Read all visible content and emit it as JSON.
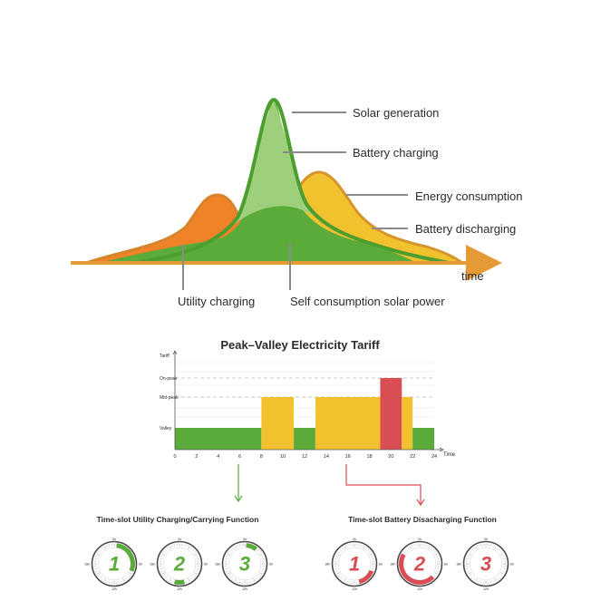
{
  "energy": {
    "labels": {
      "solar_generation": "Solar generation",
      "battery_charging": "Battery charging",
      "energy_consumption": "Energy consumption",
      "battery_discharging": "Battery discharging",
      "time": "time",
      "utility_charging": "Utility charging",
      "self_consumption": "Self consumption solar power"
    },
    "colors": {
      "orange": "#f08228",
      "orange_stroke": "#d6842c",
      "green_dark": "#5aab3a",
      "green_light": "#9ed07c",
      "green_stroke": "#4c9e2f",
      "yellow": "#f2c12e",
      "axis": "#e69a35",
      "leader": "#8a8a8a"
    }
  },
  "tariff": {
    "title": "Peak–Valley Electricity Tariff",
    "ylabel": "Tariff",
    "xlabel": "Time",
    "levels": [
      {
        "key": "valley",
        "label": "Valley"
      },
      {
        "key": "mid",
        "label": "Mid-peak"
      },
      {
        "key": "on",
        "label": "On-peak"
      }
    ],
    "chart_data": {
      "type": "bar",
      "x_ticks": [
        "0",
        "2",
        "4",
        "6",
        "8",
        "10",
        "12",
        "14",
        "16",
        "18",
        "20",
        "22",
        "24"
      ],
      "xlim": [
        0,
        24
      ],
      "segments": [
        {
          "start": 0,
          "end": 8,
          "level": "valley",
          "color": "#5aab3a"
        },
        {
          "start": 8,
          "end": 11,
          "level": "mid",
          "color": "#f2c12e"
        },
        {
          "start": 11,
          "end": 13,
          "level": "valley",
          "color": "#5aab3a"
        },
        {
          "start": 13,
          "end": 19,
          "level": "mid",
          "color": "#f2c12e"
        },
        {
          "start": 19,
          "end": 21,
          "level": "on",
          "color": "#d94d55"
        },
        {
          "start": 21,
          "end": 22,
          "level": "mid",
          "color": "#f2c12e"
        },
        {
          "start": 22,
          "end": 24,
          "level": "valley",
          "color": "#5aab3a"
        }
      ]
    }
  },
  "functions": {
    "utility_title": "Time-slot Utility Charging/Carrying Function",
    "battery_title": "Time-slot Battery Disacharging Function",
    "utility_color": "#5aab3a",
    "battery_color": "#d94d55",
    "clock_labels": {
      "top": "0h",
      "right": "6h",
      "bottom": "12h",
      "left": "18h"
    },
    "utility_clocks": [
      {
        "number": "1",
        "start_h": 0.5,
        "end_h": 7.5
      },
      {
        "number": "2",
        "start_h": 11,
        "end_h": 13
      },
      {
        "number": "3",
        "start_h": 0.3,
        "end_h": 2.5
      }
    ],
    "battery_clocks": [
      {
        "number": "1",
        "start_h": 7.5,
        "end_h": 11
      },
      {
        "number": "2",
        "start_h": 9,
        "end_h": 20
      },
      {
        "number": "3",
        "start_h": 0,
        "end_h": 0
      }
    ]
  }
}
